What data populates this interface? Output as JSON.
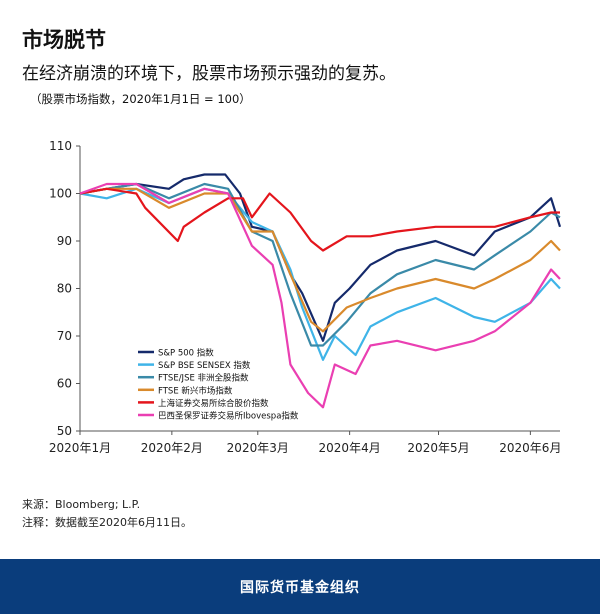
{
  "header": {
    "title": "市场脱节",
    "subtitle": "在经济崩溃的环境下，股票市场预示强劲的复苏。",
    "note": "（股票市场指数，2020年1月1日 = 100）"
  },
  "footer": {
    "source": "来源：Bloomberg; L.P.",
    "notes": "注释：数据截至2020年6月11日。",
    "brand": "国际货币基金组织"
  },
  "chart_data": {
    "type": "line",
    "xlabel": "",
    "ylabel": "",
    "ylim": [
      50,
      110
    ],
    "yticks": [
      50,
      60,
      70,
      80,
      90,
      100,
      110
    ],
    "xlim": [
      "2020-01-01",
      "2020-06-11"
    ],
    "xticks": [
      {
        "date": "2020-01-01",
        "label": "2020年1月"
      },
      {
        "date": "2020-02-01",
        "label": "2020年2月"
      },
      {
        "date": "2020-03-01",
        "label": "2020年3月"
      },
      {
        "date": "2020-04-01",
        "label": "2020年4月"
      },
      {
        "date": "2020-05-01",
        "label": "2020年5月"
      },
      {
        "date": "2020-06-01",
        "label": "2020年6月"
      }
    ],
    "grid": false,
    "legend_position": "bottom-left",
    "series": [
      {
        "name": "S&P 500 指数",
        "color": "#152a6b",
        "points": [
          [
            "2020-01-01",
            100
          ],
          [
            "2020-01-10",
            101
          ],
          [
            "2020-01-20",
            102
          ],
          [
            "2020-01-31",
            101
          ],
          [
            "2020-02-05",
            103
          ],
          [
            "2020-02-12",
            104
          ],
          [
            "2020-02-19",
            104
          ],
          [
            "2020-02-24",
            100
          ],
          [
            "2020-02-28",
            93
          ],
          [
            "2020-03-06",
            92
          ],
          [
            "2020-03-12",
            83
          ],
          [
            "2020-03-16",
            79
          ],
          [
            "2020-03-23",
            69
          ],
          [
            "2020-03-27",
            77
          ],
          [
            "2020-04-01",
            80
          ],
          [
            "2020-04-08",
            85
          ],
          [
            "2020-04-17",
            88
          ],
          [
            "2020-04-30",
            90
          ],
          [
            "2020-05-13",
            87
          ],
          [
            "2020-05-20",
            92
          ],
          [
            "2020-06-01",
            95
          ],
          [
            "2020-06-08",
            99
          ],
          [
            "2020-06-11",
            93
          ]
        ]
      },
      {
        "name": "S&P BSE SENSEX 指数",
        "color": "#3fb4e8",
        "points": [
          [
            "2020-01-01",
            100
          ],
          [
            "2020-01-10",
            99
          ],
          [
            "2020-01-20",
            101
          ],
          [
            "2020-01-31",
            98
          ],
          [
            "2020-02-12",
            101
          ],
          [
            "2020-02-20",
            100
          ],
          [
            "2020-02-28",
            94
          ],
          [
            "2020-03-06",
            92
          ],
          [
            "2020-03-12",
            84
          ],
          [
            "2020-03-16",
            76
          ],
          [
            "2020-03-23",
            65
          ],
          [
            "2020-03-27",
            70
          ],
          [
            "2020-04-03",
            66
          ],
          [
            "2020-04-08",
            72
          ],
          [
            "2020-04-17",
            75
          ],
          [
            "2020-04-30",
            78
          ],
          [
            "2020-05-13",
            74
          ],
          [
            "2020-05-20",
            73
          ],
          [
            "2020-06-01",
            77
          ],
          [
            "2020-06-08",
            82
          ],
          [
            "2020-06-11",
            80
          ]
        ]
      },
      {
        "name": "FTSE/JSE 非洲全股指数",
        "color": "#3a8aa8",
        "points": [
          [
            "2020-01-01",
            100
          ],
          [
            "2020-01-10",
            101
          ],
          [
            "2020-01-20",
            102
          ],
          [
            "2020-01-31",
            99
          ],
          [
            "2020-02-12",
            102
          ],
          [
            "2020-02-20",
            101
          ],
          [
            "2020-02-28",
            92
          ],
          [
            "2020-03-06",
            90
          ],
          [
            "2020-03-12",
            79
          ],
          [
            "2020-03-19",
            68
          ],
          [
            "2020-03-23",
            68
          ],
          [
            "2020-03-31",
            73
          ],
          [
            "2020-04-08",
            79
          ],
          [
            "2020-04-17",
            83
          ],
          [
            "2020-04-30",
            86
          ],
          [
            "2020-05-13",
            84
          ],
          [
            "2020-05-20",
            87
          ],
          [
            "2020-06-01",
            92
          ],
          [
            "2020-06-08",
            96
          ],
          [
            "2020-06-11",
            95
          ]
        ]
      },
      {
        "name": "FTSE 新兴市场指数",
        "color": "#d98a2c",
        "points": [
          [
            "2020-01-01",
            100
          ],
          [
            "2020-01-10",
            101
          ],
          [
            "2020-01-20",
            101
          ],
          [
            "2020-01-31",
            97
          ],
          [
            "2020-02-12",
            100
          ],
          [
            "2020-02-20",
            100
          ],
          [
            "2020-02-28",
            92
          ],
          [
            "2020-03-06",
            92
          ],
          [
            "2020-03-12",
            83
          ],
          [
            "2020-03-19",
            73
          ],
          [
            "2020-03-23",
            71
          ],
          [
            "2020-03-31",
            76
          ],
          [
            "2020-04-08",
            78
          ],
          [
            "2020-04-17",
            80
          ],
          [
            "2020-04-30",
            82
          ],
          [
            "2020-05-13",
            80
          ],
          [
            "2020-05-20",
            82
          ],
          [
            "2020-06-01",
            86
          ],
          [
            "2020-06-08",
            90
          ],
          [
            "2020-06-11",
            88
          ]
        ]
      },
      {
        "name": "上海证券交易所综合股价指数",
        "color": "#e4151c",
        "points": [
          [
            "2020-01-01",
            100
          ],
          [
            "2020-01-10",
            101
          ],
          [
            "2020-01-20",
            100
          ],
          [
            "2020-01-23",
            97
          ],
          [
            "2020-02-03",
            90
          ],
          [
            "2020-02-05",
            93
          ],
          [
            "2020-02-12",
            96
          ],
          [
            "2020-02-20",
            99
          ],
          [
            "2020-02-25",
            99
          ],
          [
            "2020-02-28",
            95
          ],
          [
            "2020-03-05",
            100
          ],
          [
            "2020-03-12",
            96
          ],
          [
            "2020-03-19",
            90
          ],
          [
            "2020-03-23",
            88
          ],
          [
            "2020-03-31",
            91
          ],
          [
            "2020-04-08",
            91
          ],
          [
            "2020-04-17",
            92
          ],
          [
            "2020-04-30",
            93
          ],
          [
            "2020-05-13",
            93
          ],
          [
            "2020-05-20",
            93
          ],
          [
            "2020-06-01",
            95
          ],
          [
            "2020-06-08",
            96
          ],
          [
            "2020-06-11",
            96
          ]
        ]
      },
      {
        "name": "巴西圣保罗证券交易所Ibovespa指数",
        "color": "#ea3fb2",
        "points": [
          [
            "2020-01-01",
            100
          ],
          [
            "2020-01-10",
            102
          ],
          [
            "2020-01-20",
            102
          ],
          [
            "2020-01-31",
            98
          ],
          [
            "2020-02-12",
            101
          ],
          [
            "2020-02-20",
            100
          ],
          [
            "2020-02-28",
            89
          ],
          [
            "2020-03-06",
            85
          ],
          [
            "2020-03-09",
            77
          ],
          [
            "2020-03-12",
            64
          ],
          [
            "2020-03-18",
            58
          ],
          [
            "2020-03-23",
            55
          ],
          [
            "2020-03-27",
            64
          ],
          [
            "2020-04-03",
            62
          ],
          [
            "2020-04-08",
            68
          ],
          [
            "2020-04-17",
            69
          ],
          [
            "2020-04-30",
            67
          ],
          [
            "2020-05-13",
            69
          ],
          [
            "2020-05-20",
            71
          ],
          [
            "2020-06-01",
            77
          ],
          [
            "2020-06-08",
            84
          ],
          [
            "2020-06-11",
            82
          ]
        ]
      }
    ]
  }
}
